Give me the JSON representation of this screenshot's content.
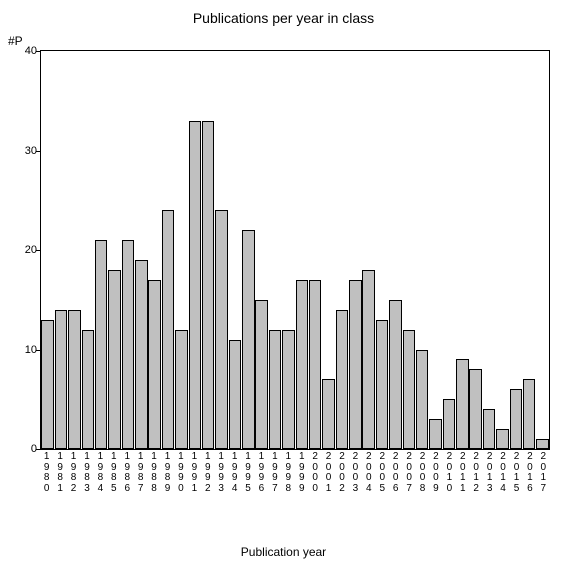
{
  "chart": {
    "type": "bar",
    "title": "Publications per year in class",
    "ylabel": "#P",
    "xlabel": "Publication year",
    "ylim": [
      0,
      40
    ],
    "ytick_step": 10,
    "bar_fill": "#c0c0c0",
    "bar_border": "#000000",
    "background_color": "#ffffff",
    "axis_color": "#000000",
    "title_fontsize": 14,
    "label_fontsize": 12,
    "tick_fontsize": 11,
    "categories": [
      "1980",
      "1981",
      "1982",
      "1983",
      "1984",
      "1985",
      "1986",
      "1987",
      "1988",
      "1989",
      "1990",
      "1991",
      "1992",
      "1993",
      "1994",
      "1995",
      "1996",
      "1997",
      "1998",
      "1999",
      "2000",
      "2001",
      "2002",
      "2003",
      "2004",
      "2005",
      "2006",
      "2007",
      "2008",
      "2009",
      "2010",
      "2011",
      "2012",
      "2013",
      "2014",
      "2015",
      "2016",
      "2017"
    ],
    "values": [
      13,
      14,
      14,
      12,
      21,
      18,
      21,
      19,
      17,
      24,
      12,
      33,
      33,
      24,
      11,
      22,
      15,
      12,
      12,
      17,
      17,
      7,
      14,
      17,
      18,
      13,
      15,
      12,
      10,
      3,
      5,
      9,
      8,
      4,
      2,
      6,
      7,
      1
    ]
  }
}
